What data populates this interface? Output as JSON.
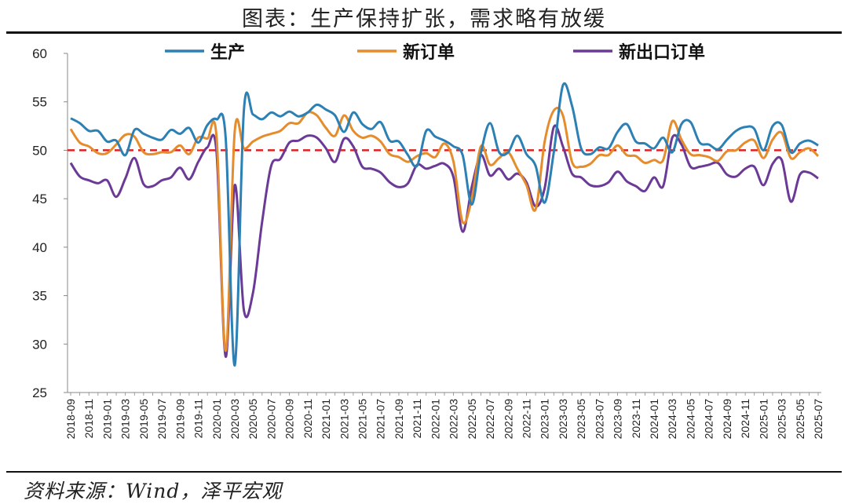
{
  "title": "图表：生产保持扩张，需求略有放缓",
  "source": "资料来源：Wind，泽平宏观",
  "chart_data": {
    "type": "line",
    "ylim": [
      25,
      60
    ],
    "yticks": [
      25,
      30,
      35,
      40,
      45,
      50,
      55,
      60
    ],
    "reference_line": 50,
    "grid": false,
    "legend_position": "top",
    "x": [
      "2018-09",
      "2018-10",
      "2018-11",
      "2018-12",
      "2019-01",
      "2019-02",
      "2019-03",
      "2019-04",
      "2019-05",
      "2019-06",
      "2019-07",
      "2019-08",
      "2019-09",
      "2019-10",
      "2019-11",
      "2019-12",
      "2020-01",
      "2020-02",
      "2020-03",
      "2020-04",
      "2020-05",
      "2020-06",
      "2020-07",
      "2020-08",
      "2020-09",
      "2020-10",
      "2020-11",
      "2020-12",
      "2021-01",
      "2021-02",
      "2021-03",
      "2021-04",
      "2021-05",
      "2021-06",
      "2021-07",
      "2021-08",
      "2021-09",
      "2021-10",
      "2021-11",
      "2021-12",
      "2022-01",
      "2022-02",
      "2022-03",
      "2022-04",
      "2022-05",
      "2022-06",
      "2022-07",
      "2022-08",
      "2022-09",
      "2022-10",
      "2022-11",
      "2022-12",
      "2023-01",
      "2023-02",
      "2023-03",
      "2023-04",
      "2023-05",
      "2023-06",
      "2023-07",
      "2023-08",
      "2023-09",
      "2023-10",
      "2023-11",
      "2023-12",
      "2024-01",
      "2024-02",
      "2024-03",
      "2024-04",
      "2024-05",
      "2024-06",
      "2024-07",
      "2024-08",
      "2024-09",
      "2024-10",
      "2024-11",
      "2024-12",
      "2025-01",
      "2025-02",
      "2025-03",
      "2025-04",
      "2025-05",
      "2025-06",
      "2025-07"
    ],
    "xtick_labels": [
      "2018-09",
      "2018-11",
      "2019-01",
      "2019-03",
      "2019-05",
      "2019-07",
      "2019-09",
      "2019-11",
      "2020-01",
      "2020-03",
      "2020-05",
      "2020-07",
      "2020-09",
      "2020-11",
      "2021-01",
      "2021-03",
      "2021-05",
      "2021-07",
      "2021-09",
      "2021-11",
      "2022-01",
      "2022-03",
      "2022-05",
      "2022-07",
      "2022-09",
      "2022-11",
      "2023-01",
      "2023-03",
      "2023-05",
      "2023-07",
      "2023-09",
      "2023-11",
      "2024-01",
      "2024-03",
      "2024-05",
      "2024-07",
      "2024-09",
      "2024-11",
      "2025-01",
      "2025-03",
      "2025-05",
      "2025-07"
    ],
    "series": [
      {
        "name": "生产",
        "color": "#2c80b4",
        "values": [
          53.3,
          52.8,
          52.0,
          52.0,
          50.9,
          51.0,
          49.5,
          52.1,
          51.7,
          51.3,
          51.1,
          52.1,
          51.7,
          52.3,
          50.8,
          52.6,
          53.2,
          51.3,
          27.8,
          54.1,
          53.7,
          53.2,
          53.9,
          53.5,
          54.0,
          53.5,
          53.9,
          54.7,
          54.2,
          53.6,
          51.9,
          53.9,
          52.7,
          52.2,
          52.9,
          51.0,
          50.9,
          49.5,
          48.4,
          52.0,
          51.4,
          51.0,
          50.4,
          49.5,
          44.4,
          49.7,
          52.8,
          49.8,
          49.8,
          51.5,
          49.6,
          48.4,
          44.6,
          49.8,
          56.7,
          54.6,
          50.2,
          49.6,
          50.3,
          50.2,
          51.9,
          52.7,
          50.9,
          50.7,
          50.2,
          51.3,
          49.8,
          52.7,
          52.9,
          50.8,
          50.6,
          50.1,
          51.1,
          52.0,
          52.4,
          52.2,
          50.0,
          52.5,
          52.6,
          49.8,
          50.7,
          51.0,
          50.5
        ]
      },
      {
        "name": "新订单",
        "color": "#e58c2d",
        "values": [
          52.2,
          50.8,
          50.4,
          49.7,
          49.7,
          50.6,
          51.6,
          51.4,
          49.8,
          49.6,
          49.8,
          49.8,
          50.5,
          49.6,
          51.3,
          51.2,
          51.4,
          29.3,
          52.0,
          50.2,
          50.9,
          51.4,
          51.7,
          52.0,
          52.8,
          52.8,
          53.9,
          53.6,
          52.3,
          51.5,
          53.6,
          52.0,
          51.3,
          51.5,
          50.9,
          49.6,
          49.3,
          48.8,
          49.4,
          49.7,
          49.3,
          50.7,
          48.8,
          42.6,
          45.0,
          50.4,
          48.5,
          49.2,
          49.8,
          48.1,
          46.4,
          43.9,
          50.9,
          54.1,
          53.6,
          48.8,
          48.3,
          48.6,
          49.5,
          49.5,
          50.5,
          49.5,
          49.4,
          48.7,
          49.0,
          49.0,
          53.0,
          51.1,
          49.6,
          49.5,
          49.3,
          48.9,
          49.9,
          50.0,
          50.8,
          51.0,
          49.2,
          51.1,
          51.8,
          49.2,
          49.8,
          50.2,
          49.4
        ]
      },
      {
        "name": "新出口订单",
        "color": "#6b3a97",
        "values": [
          48.7,
          47.3,
          46.9,
          46.6,
          46.9,
          45.2,
          47.1,
          49.2,
          46.5,
          46.3,
          46.9,
          47.2,
          48.2,
          47.0,
          48.8,
          50.3,
          49.8,
          28.7,
          46.4,
          33.5,
          35.3,
          42.6,
          48.4,
          49.1,
          50.8,
          51.0,
          51.5,
          51.3,
          50.2,
          48.8,
          51.2,
          50.4,
          48.3,
          48.1,
          47.7,
          46.7,
          46.2,
          46.6,
          48.5,
          48.1,
          48.4,
          48.6,
          47.2,
          41.6,
          46.2,
          49.5,
          47.4,
          48.1,
          47.0,
          47.6,
          46.7,
          44.2,
          46.1,
          52.4,
          50.4,
          47.6,
          47.2,
          46.4,
          46.3,
          46.7,
          47.8,
          46.8,
          46.3,
          45.8,
          47.2,
          46.3,
          51.3,
          50.6,
          48.3,
          48.3,
          48.5,
          48.7,
          47.5,
          47.3,
          48.1,
          48.3,
          46.4,
          48.6,
          49.0,
          44.7,
          47.5,
          47.7,
          47.1
        ]
      }
    ]
  }
}
